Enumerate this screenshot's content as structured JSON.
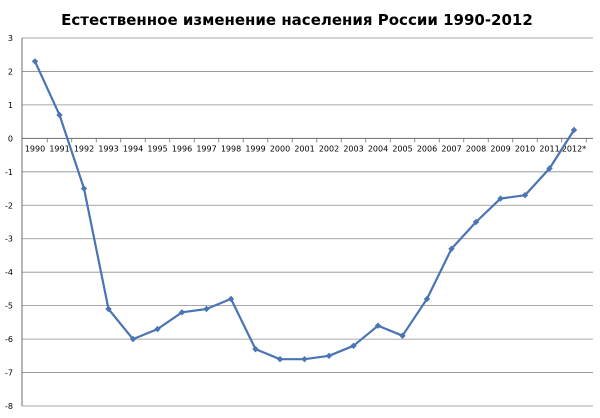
{
  "chart_data": {
    "type": "line",
    "title": "Естественное изменение населения России 1990-2012",
    "xlabel": "",
    "ylabel": "",
    "ylim": [
      -8,
      3
    ],
    "yticks": [
      3,
      2,
      1,
      0,
      -1,
      -2,
      -3,
      -4,
      -5,
      -6,
      -7,
      -8
    ],
    "grid": true,
    "legend": "none",
    "categories": [
      "1990",
      "1991",
      "1992",
      "1993",
      "1994",
      "1995",
      "1996",
      "1997",
      "1998",
      "1999",
      "2000",
      "2001",
      "2002",
      "2003",
      "2004",
      "2005",
      "2006",
      "2007",
      "2008",
      "2009",
      "2010",
      "2011",
      "2012*"
    ],
    "series": [
      {
        "values": [
          2.3,
          0.7,
          -1.5,
          -5.1,
          -6.0,
          -5.7,
          -5.2,
          -5.1,
          -4.8,
          -6.3,
          -6.6,
          -6.6,
          -6.5,
          -6.2,
          -5.6,
          -5.9,
          -4.8,
          -3.3,
          -2.5,
          -1.8,
          -1.7,
          -0.9,
          0.25
        ],
        "color": "#4a74b4"
      }
    ],
    "gridColor": "#8c8c8c",
    "axisColor": "#6e6e6e"
  }
}
